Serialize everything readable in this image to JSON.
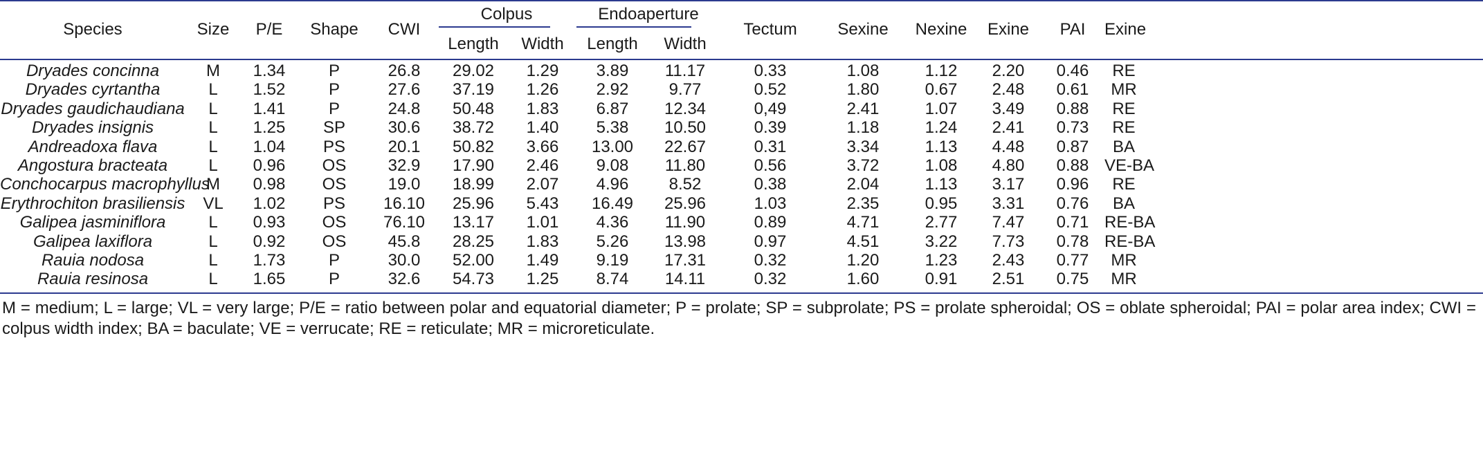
{
  "table": {
    "headers": {
      "species": "Species",
      "size": "Size",
      "pe": "P/E",
      "shape": "Shape",
      "cwi": "CWI",
      "colpus": "Colpus",
      "colpus_length": "Length",
      "colpus_width": "Width",
      "endoaperture": "Endoaperture",
      "endo_length": "Length",
      "endo_width": "Width",
      "tectum": "Tectum",
      "sexine": "Sexine",
      "nexine": "Nexine",
      "exine": "Exine",
      "pai": "PAI",
      "exine2": "Exine"
    },
    "rows": [
      {
        "species": "Dryades concinna",
        "size": "M",
        "pe": "1.34",
        "shape": "P",
        "cwi": "26.8",
        "colpus_length": "29.02",
        "colpus_width": "1.29",
        "endo_length": "3.89",
        "endo_width": "11.17",
        "tectum": "0.33",
        "sexine": "1.08",
        "nexine": "1.12",
        "exine": "2.20",
        "pai": "0.46",
        "exine2": "RE"
      },
      {
        "species": "Dryades cyrtantha",
        "size": "L",
        "pe": "1.52",
        "shape": "P",
        "cwi": "27.6",
        "colpus_length": "37.19",
        "colpus_width": "1.26",
        "endo_length": "2.92",
        "endo_width": "9.77",
        "tectum": "0.52",
        "sexine": "1.80",
        "nexine": "0.67",
        "exine": "2.48",
        "pai": "0.61",
        "exine2": "MR"
      },
      {
        "species": "Dryades gaudichaudiana",
        "size": "L",
        "pe": "1.41",
        "shape": "P",
        "cwi": "24.8",
        "colpus_length": "50.48",
        "colpus_width": "1.83",
        "endo_length": "6.87",
        "endo_width": "12.34",
        "tectum": "0,49",
        "sexine": "2.41",
        "nexine": "1.07",
        "exine": "3.49",
        "pai": "0.88",
        "exine2": "RE"
      },
      {
        "species": "Dryades insignis",
        "size": "L",
        "pe": "1.25",
        "shape": "SP",
        "cwi": "30.6",
        "colpus_length": "38.72",
        "colpus_width": "1.40",
        "endo_length": "5.38",
        "endo_width": "10.50",
        "tectum": "0.39",
        "sexine": "1.18",
        "nexine": "1.24",
        "exine": "2.41",
        "pai": "0.73",
        "exine2": "RE"
      },
      {
        "species": "Andreadoxa flava",
        "size": "L",
        "pe": "1.04",
        "shape": "PS",
        "cwi": "20.1",
        "colpus_length": "50.82",
        "colpus_width": "3.66",
        "endo_length": "13.00",
        "endo_width": "22.67",
        "tectum": "0.31",
        "sexine": "3.34",
        "nexine": "1.13",
        "exine": "4.48",
        "pai": "0.87",
        "exine2": "BA"
      },
      {
        "species": "Angostura bracteata",
        "size": "L",
        "pe": "0.96",
        "shape": "OS",
        "cwi": "32.9",
        "colpus_length": "17.90",
        "colpus_width": "2.46",
        "endo_length": "9.08",
        "endo_width": "11.80",
        "tectum": "0.56",
        "sexine": "3.72",
        "nexine": "1.08",
        "exine": "4.80",
        "pai": "0.88",
        "exine2": "VE-BA"
      },
      {
        "species": "Conchocarpus macrophyllus",
        "size": "M",
        "pe": "0.98",
        "shape": "OS",
        "cwi": "19.0",
        "colpus_length": "18.99",
        "colpus_width": "2.07",
        "endo_length": "4.96",
        "endo_width": "8.52",
        "tectum": "0.38",
        "sexine": "2.04",
        "nexine": "1.13",
        "exine": "3.17",
        "pai": "0.96",
        "exine2": "RE"
      },
      {
        "species": "Erythrochiton brasiliensis",
        "size": "VL",
        "pe": "1.02",
        "shape": "PS",
        "cwi": "16.10",
        "colpus_length": "25.96",
        "colpus_width": "5.43",
        "endo_length": "16.49",
        "endo_width": "25.96",
        "tectum": "1.03",
        "sexine": "2.35",
        "nexine": "0.95",
        "exine": "3.31",
        "pai": "0.76",
        "exine2": "BA"
      },
      {
        "species": "Galipea jasminiflora",
        "size": "L",
        "pe": "0.93",
        "shape": "OS",
        "cwi": "76.10",
        "colpus_length": "13.17",
        "colpus_width": "1.01",
        "endo_length": "4.36",
        "endo_width": "11.90",
        "tectum": "0.89",
        "sexine": "4.71",
        "nexine": "2.77",
        "exine": "7.47",
        "pai": "0.71",
        "exine2": "RE-BA"
      },
      {
        "species": "Galipea laxiflora",
        "size": "L",
        "pe": "0.92",
        "shape": "OS",
        "cwi": "45.8",
        "colpus_length": "28.25",
        "colpus_width": "1.83",
        "endo_length": "5.26",
        "endo_width": "13.98",
        "tectum": "0.97",
        "sexine": "4.51",
        "nexine": "3.22",
        "exine": "7.73",
        "pai": "0.78",
        "exine2": "RE-BA"
      },
      {
        "species": "Rauia nodosa",
        "size": "L",
        "pe": "1.73",
        "shape": "P",
        "cwi": "30.0",
        "colpus_length": "52.00",
        "colpus_width": "1.49",
        "endo_length": "9.19",
        "endo_width": "17.31",
        "tectum": "0.32",
        "sexine": "1.20",
        "nexine": "1.23",
        "exine": "2.43",
        "pai": "0.77",
        "exine2": "MR"
      },
      {
        "species": "Rauia resinosa",
        "size": "L",
        "pe": "1.65",
        "shape": "P",
        "cwi": "32.6",
        "colpus_length": "54.73",
        "colpus_width": "1.25",
        "endo_length": "8.74",
        "endo_width": "14.11",
        "tectum": "0.32",
        "sexine": "1.60",
        "nexine": "0.91",
        "exine": "2.51",
        "pai": "0.75",
        "exine2": "MR"
      }
    ]
  },
  "footnote": "M = medium; L = large; VL = very large; P/E = ratio between polar and equatorial diameter; P = prolate; SP = subprolate; PS = prolate spheroidal; OS = oblate spheroidal; PAI = polar area index; CWI = colpus width index; BA = baculate; VE = verrucate; RE = reticulate; MR = microreticulate.",
  "colors": {
    "rule": "#2b3a8f",
    "text": "#1a1a1a"
  }
}
